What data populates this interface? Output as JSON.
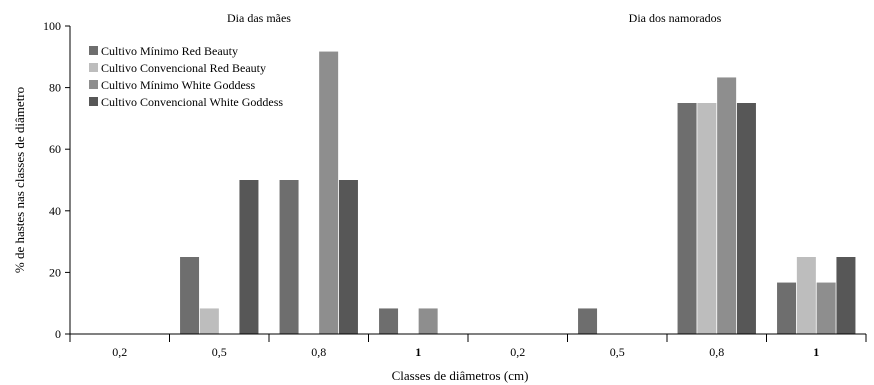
{
  "chart_data": {
    "type": "bar",
    "ylabel": "% de hastes nas classes de diâmetro",
    "xlabel": "Classes de diâmetros (cm)",
    "ylim": [
      0,
      100
    ],
    "yticks": [
      0,
      20,
      40,
      60,
      80,
      100
    ],
    "legend_position": "top-left",
    "panels": [
      {
        "title": "Dia das mães",
        "categories": [
          "0,2",
          "0,5",
          "0,8",
          "1"
        ],
        "series": [
          {
            "name": "Cultivo Mínimo Red Beauty",
            "color": "#6e6e6e",
            "values": [
              0,
              25,
              50,
              8.3
            ]
          },
          {
            "name": "Cultivo Convencional Red Beauty",
            "color": "#bdbdbd",
            "values": [
              0,
              8.3,
              0,
              0
            ]
          },
          {
            "name": "Cultivo Mínimo White Goddess",
            "color": "#8e8e8e",
            "values": [
              0,
              0,
              91.7,
              8.3
            ]
          },
          {
            "name": "Cultivo Convencional White Goddess",
            "color": "#575757",
            "values": [
              0,
              50,
              50,
              0
            ]
          }
        ]
      },
      {
        "title": "Dia dos namorados",
        "categories": [
          "0,2",
          "0,5",
          "0,8",
          "1"
        ],
        "series": [
          {
            "name": "Cultivo Mínimo Red Beauty",
            "color": "#6e6e6e",
            "values": [
              0,
              8.3,
              75,
              16.7
            ]
          },
          {
            "name": "Cultivo Convencional Red Beauty",
            "color": "#bdbdbd",
            "values": [
              0,
              0,
              75,
              25
            ]
          },
          {
            "name": "Cultivo Mínimo White Goddess",
            "color": "#8e8e8e",
            "values": [
              0,
              0,
              83.3,
              16.7
            ]
          },
          {
            "name": "Cultivo Convencional White Goddess",
            "color": "#575757",
            "values": [
              0,
              0,
              75,
              25
            ]
          }
        ]
      }
    ]
  }
}
